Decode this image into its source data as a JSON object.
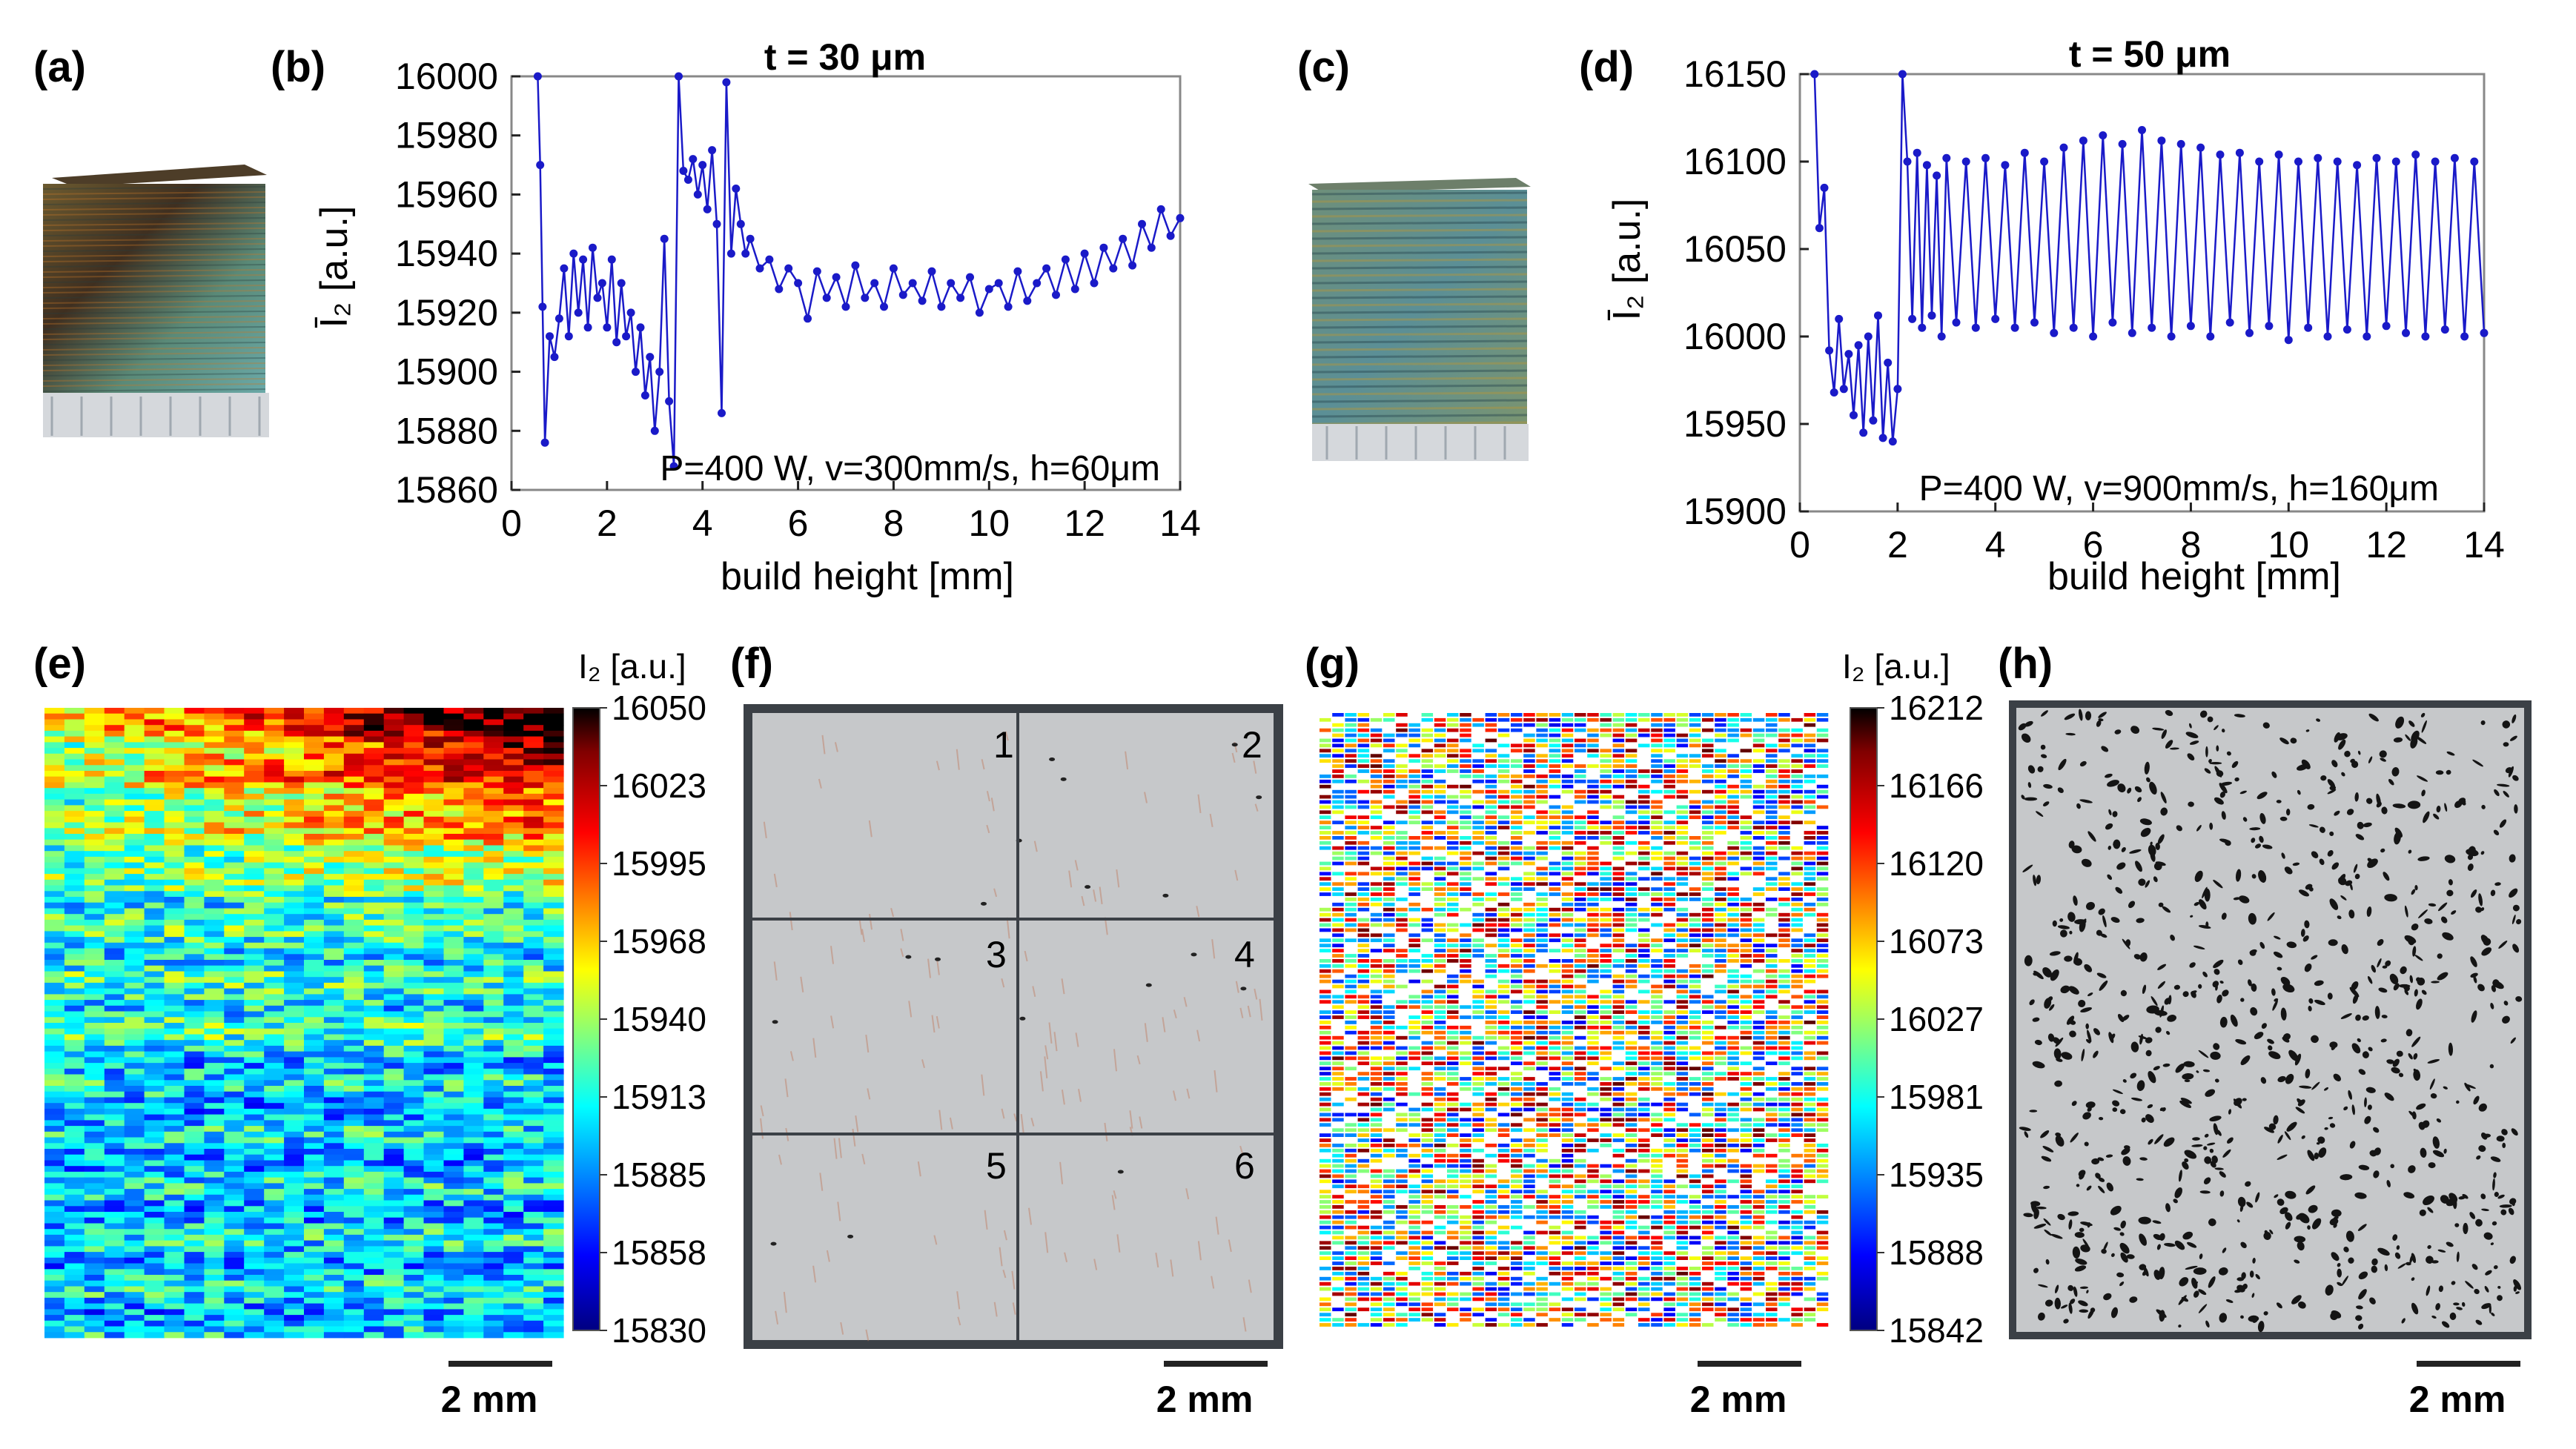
{
  "panel_labels": {
    "a": "(a)",
    "b": "(b)",
    "c": "(c)",
    "d": "(d)",
    "e": "(e)",
    "f": "(f)",
    "g": "(g)",
    "h": "(h)"
  },
  "colors": {
    "series": "#1a1ac8",
    "axis": "#222222",
    "frame": "#888888",
    "micro_bg": "#c6c8ca",
    "micro_border": "#3b4046",
    "jet": [
      "#000080",
      "#0000ff",
      "#00ffff",
      "#ffff00",
      "#ff0000",
      "#800000",
      "#000000"
    ]
  },
  "colorbars": {
    "e": {
      "title": "I₂ [a.u.]",
      "ticks": [
        "16050",
        "16023",
        "15995",
        "15968",
        "15940",
        "15913",
        "15885",
        "15858",
        "15830"
      ]
    },
    "g": {
      "title": "I₂ [a.u.]",
      "ticks": [
        "16212",
        "16166",
        "16120",
        "16073",
        "16027",
        "15981",
        "15935",
        "15888",
        "15842"
      ]
    }
  },
  "micrograph_f": {
    "sections": [
      "1",
      "2",
      "3",
      "4",
      "5",
      "6"
    ]
  },
  "scale_bars": {
    "e": "2 mm",
    "f": "2 mm",
    "g": "2 mm",
    "h": "2 mm"
  },
  "chart_data": [
    {
      "id": "b",
      "type": "line",
      "title": "t = 30 μm",
      "xlabel": "build height [mm]",
      "ylabel": "Ī₂ [a.u.]",
      "xlim": [
        0,
        14
      ],
      "ylim": [
        15860,
        16000
      ],
      "xticks": [
        0,
        2,
        4,
        6,
        8,
        10,
        12,
        14
      ],
      "yticks": [
        15860,
        15880,
        15900,
        15920,
        15940,
        15960,
        15980,
        16000
      ],
      "annotation": "P=400 W, v=300mm/s, h=60μm",
      "series": [
        {
          "name": "t = 30 μm",
          "x": [
            0.55,
            0.6,
            0.65,
            0.7,
            0.8,
            0.9,
            1.0,
            1.1,
            1.2,
            1.3,
            1.4,
            1.5,
            1.6,
            1.7,
            1.8,
            1.9,
            2.0,
            2.1,
            2.2,
            2.3,
            2.4,
            2.5,
            2.6,
            2.7,
            2.8,
            2.9,
            3.0,
            3.1,
            3.2,
            3.3,
            3.4,
            3.5,
            3.6,
            3.7,
            3.8,
            3.9,
            4.0,
            4.1,
            4.2,
            4.3,
            4.4,
            4.5,
            4.6,
            4.7,
            4.8,
            4.9,
            5.0,
            5.2,
            5.4,
            5.6,
            5.8,
            6.0,
            6.2,
            6.4,
            6.6,
            6.8,
            7.0,
            7.2,
            7.4,
            7.6,
            7.8,
            8.0,
            8.2,
            8.4,
            8.6,
            8.8,
            9.0,
            9.2,
            9.4,
            9.6,
            9.8,
            10.0,
            10.2,
            10.4,
            10.6,
            10.8,
            11.0,
            11.2,
            11.4,
            11.6,
            11.8,
            12.0,
            12.2,
            12.4,
            12.6,
            12.8,
            13.0,
            13.2,
            13.4,
            13.6,
            13.8,
            14.0
          ],
          "y": [
            16000,
            15970,
            15922,
            15876,
            15912,
            15905,
            15918,
            15935,
            15912,
            15940,
            15920,
            15938,
            15915,
            15942,
            15925,
            15930,
            15915,
            15938,
            15910,
            15930,
            15912,
            15920,
            15900,
            15915,
            15892,
            15905,
            15880,
            15900,
            15945,
            15890,
            15868,
            16000,
            15968,
            15965,
            15972,
            15960,
            15970,
            15955,
            15975,
            15950,
            15886,
            15998,
            15940,
            15962,
            15950,
            15940,
            15945,
            15935,
            15938,
            15928,
            15935,
            15930,
            15918,
            15934,
            15925,
            15932,
            15922,
            15936,
            15925,
            15930,
            15922,
            15935,
            15926,
            15930,
            15924,
            15934,
            15922,
            15930,
            15925,
            15932,
            15920,
            15928,
            15930,
            15922,
            15934,
            15924,
            15930,
            15935,
            15926,
            15938,
            15928,
            15940,
            15930,
            15942,
            15935,
            15945,
            15936,
            15950,
            15942,
            15955,
            15946,
            15952
          ]
        }
      ]
    },
    {
      "id": "d",
      "type": "line",
      "title": "t = 50 μm",
      "xlabel": "build height [mm]",
      "ylabel": "Ī₂ [a.u.]",
      "xlim": [
        0,
        14
      ],
      "ylim": [
        15900,
        16150
      ],
      "xticks": [
        0,
        2,
        4,
        6,
        8,
        10,
        12,
        14
      ],
      "yticks": [
        15900,
        15950,
        16000,
        16050,
        16100,
        16150
      ],
      "annotation": "P=400 W, v=900mm/s, h=160μm",
      "series": [
        {
          "name": "t = 50 μm",
          "x": [
            0.3,
            0.4,
            0.5,
            0.6,
            0.7,
            0.8,
            0.9,
            1.0,
            1.1,
            1.2,
            1.3,
            1.4,
            1.5,
            1.6,
            1.7,
            1.8,
            1.9,
            2.0,
            2.1,
            2.2,
            2.3,
            2.4,
            2.5,
            2.6,
            2.7,
            2.8,
            2.9,
            3.0,
            3.2,
            3.4,
            3.6,
            3.8,
            4.0,
            4.2,
            4.4,
            4.6,
            4.8,
            5.0,
            5.2,
            5.4,
            5.6,
            5.8,
            6.0,
            6.2,
            6.4,
            6.6,
            6.8,
            7.0,
            7.2,
            7.4,
            7.6,
            7.8,
            8.0,
            8.2,
            8.4,
            8.6,
            8.8,
            9.0,
            9.2,
            9.4,
            9.6,
            9.8,
            10.0,
            10.2,
            10.4,
            10.6,
            10.8,
            11.0,
            11.2,
            11.4,
            11.6,
            11.8,
            12.0,
            12.2,
            12.4,
            12.6,
            12.8,
            13.0,
            13.2,
            13.4,
            13.6,
            13.8,
            14.0
          ],
          "y": [
            16150,
            16062,
            16085,
            15992,
            15968,
            16010,
            15970,
            15990,
            15955,
            15995,
            15945,
            16000,
            15952,
            16012,
            15942,
            15985,
            15940,
            15970,
            16150,
            16100,
            16010,
            16105,
            16005,
            16098,
            16012,
            16092,
            16000,
            16102,
            16008,
            16100,
            16005,
            16102,
            16010,
            16098,
            16005,
            16105,
            16008,
            16100,
            16002,
            16108,
            16005,
            16112,
            16000,
            16115,
            16008,
            16110,
            16002,
            16118,
            16005,
            16112,
            16000,
            16110,
            16006,
            16108,
            16000,
            16104,
            16008,
            16105,
            16002,
            16100,
            16006,
            16104,
            15998,
            16100,
            16005,
            16102,
            16000,
            16100,
            16004,
            16098,
            16000,
            16102,
            16006,
            16100,
            16002,
            16104,
            16000,
            16100,
            16004,
            16102,
            16000,
            16100,
            16002
          ]
        }
      ]
    }
  ]
}
